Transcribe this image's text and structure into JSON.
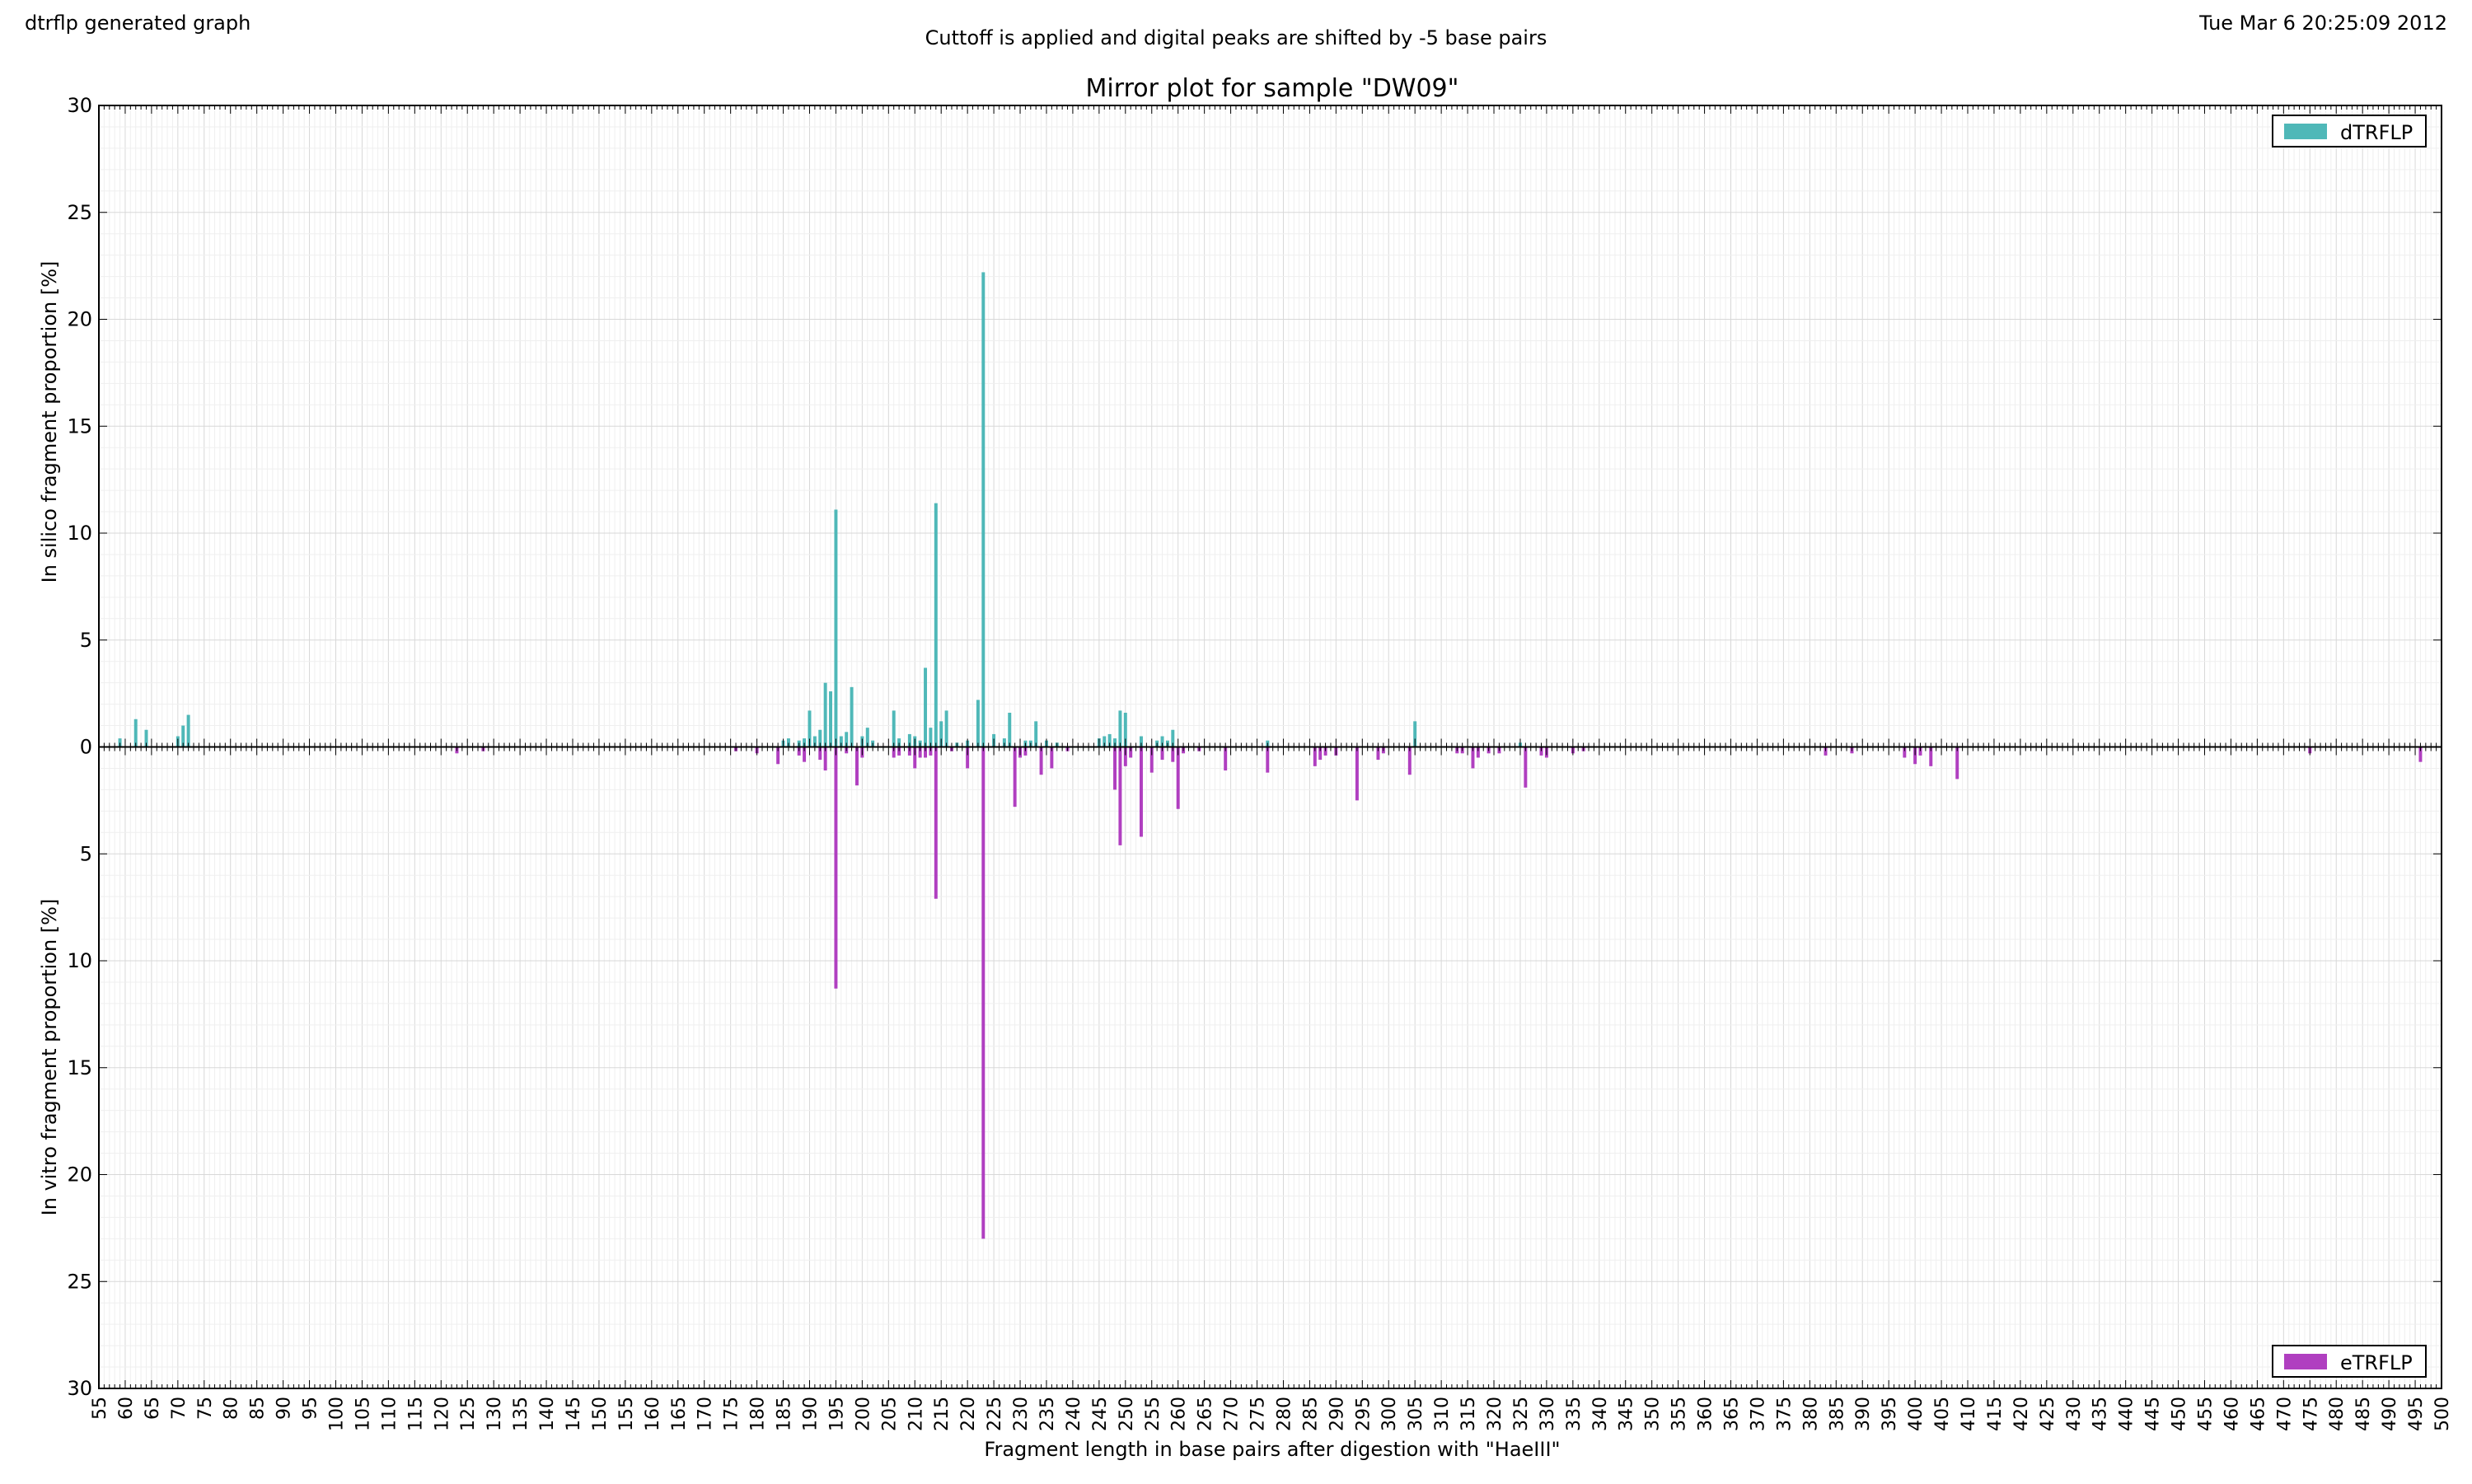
{
  "header": {
    "left": "dtrflp generated graph",
    "center": "Cuttoff is applied and digital peaks are shifted by -5 base pairs",
    "right": "Tue Mar  6 20:25:09 2012"
  },
  "chart_data": {
    "type": "bar",
    "title": "Mirror plot for sample \"DW09\"",
    "xlabel": "Fragment length in base pairs after digestion with \"HaeIII\"",
    "ylabel_top": "In silico fragment proportion [%]",
    "ylabel_bottom": "In vitro fragment proportion [%]",
    "xlim": [
      55,
      500
    ],
    "ylim": [
      -30,
      30
    ],
    "y_ticks": [
      30,
      25,
      20,
      15,
      10,
      5,
      0,
      5,
      10,
      15,
      20,
      25,
      30
    ],
    "x_tick_step": 5,
    "grid": true,
    "series": [
      {
        "name": "dTRFLP",
        "color": "#4fb8b8",
        "legend_position": "top-right",
        "points": [
          [
            59,
            0.4
          ],
          [
            62,
            1.3
          ],
          [
            64,
            0.8
          ],
          [
            70,
            0.5
          ],
          [
            71,
            1.0
          ],
          [
            72,
            1.5
          ],
          [
            185,
            0.3
          ],
          [
            186,
            0.4
          ],
          [
            188,
            0.3
          ],
          [
            189,
            0.4
          ],
          [
            190,
            1.7
          ],
          [
            191,
            0.5
          ],
          [
            192,
            0.8
          ],
          [
            193,
            3.0
          ],
          [
            194,
            2.6
          ],
          [
            195,
            11.1
          ],
          [
            196,
            0.5
          ],
          [
            197,
            0.7
          ],
          [
            198,
            2.8
          ],
          [
            200,
            0.5
          ],
          [
            201,
            0.9
          ],
          [
            202,
            0.3
          ],
          [
            206,
            1.7
          ],
          [
            207,
            0.4
          ],
          [
            209,
            0.6
          ],
          [
            210,
            0.5
          ],
          [
            211,
            0.3
          ],
          [
            212,
            3.7
          ],
          [
            213,
            0.9
          ],
          [
            214,
            11.4
          ],
          [
            215,
            1.2
          ],
          [
            216,
            1.7
          ],
          [
            218,
            0.2
          ],
          [
            220,
            0.3
          ],
          [
            222,
            2.2
          ],
          [
            223,
            22.2
          ],
          [
            225,
            0.6
          ],
          [
            227,
            0.4
          ],
          [
            228,
            1.6
          ],
          [
            231,
            0.3
          ],
          [
            232,
            0.3
          ],
          [
            233,
            1.2
          ],
          [
            235,
            0.3
          ],
          [
            237,
            0.2
          ],
          [
            245,
            0.4
          ],
          [
            246,
            0.5
          ],
          [
            247,
            0.6
          ],
          [
            248,
            0.4
          ],
          [
            249,
            1.7
          ],
          [
            250,
            1.6
          ],
          [
            253,
            0.5
          ],
          [
            256,
            0.3
          ],
          [
            257,
            0.5
          ],
          [
            258,
            0.3
          ],
          [
            259,
            0.8
          ],
          [
            277,
            0.3
          ],
          [
            305,
            1.2
          ],
          [
            325,
            0.2
          ]
        ]
      },
      {
        "name": "eTRFLP",
        "color": "#b03fc0",
        "legend_position": "bottom-right",
        "points": [
          [
            123,
            0.3
          ],
          [
            128,
            0.2
          ],
          [
            176,
            0.2
          ],
          [
            180,
            0.3
          ],
          [
            184,
            0.8
          ],
          [
            188,
            0.4
          ],
          [
            189,
            0.7
          ],
          [
            192,
            0.6
          ],
          [
            193,
            1.1
          ],
          [
            195,
            11.3
          ],
          [
            197,
            0.3
          ],
          [
            199,
            1.8
          ],
          [
            200,
            0.5
          ],
          [
            206,
            0.5
          ],
          [
            207,
            0.4
          ],
          [
            209,
            0.4
          ],
          [
            210,
            1.0
          ],
          [
            211,
            0.5
          ],
          [
            212,
            0.5
          ],
          [
            213,
            0.4
          ],
          [
            214,
            7.1
          ],
          [
            217,
            0.2
          ],
          [
            220,
            1.0
          ],
          [
            223,
            23.0
          ],
          [
            229,
            2.8
          ],
          [
            230,
            0.5
          ],
          [
            231,
            0.4
          ],
          [
            234,
            1.3
          ],
          [
            236,
            1.0
          ],
          [
            239,
            0.2
          ],
          [
            248,
            2.0
          ],
          [
            249,
            4.6
          ],
          [
            250,
            0.9
          ],
          [
            251,
            0.5
          ],
          [
            253,
            4.2
          ],
          [
            255,
            1.2
          ],
          [
            257,
            0.6
          ],
          [
            259,
            0.7
          ],
          [
            260,
            2.9
          ],
          [
            261,
            0.3
          ],
          [
            264,
            0.2
          ],
          [
            269,
            1.1
          ],
          [
            277,
            1.2
          ],
          [
            286,
            0.9
          ],
          [
            287,
            0.6
          ],
          [
            288,
            0.4
          ],
          [
            290,
            0.4
          ],
          [
            294,
            2.5
          ],
          [
            298,
            0.6
          ],
          [
            299,
            0.3
          ],
          [
            304,
            1.3
          ],
          [
            313,
            0.3
          ],
          [
            314,
            0.3
          ],
          [
            316,
            1.0
          ],
          [
            317,
            0.5
          ],
          [
            319,
            0.3
          ],
          [
            321,
            0.3
          ],
          [
            326,
            1.9
          ],
          [
            329,
            0.4
          ],
          [
            330,
            0.5
          ],
          [
            335,
            0.3
          ],
          [
            337,
            0.2
          ],
          [
            383,
            0.4
          ],
          [
            388,
            0.3
          ],
          [
            398,
            0.5
          ],
          [
            400,
            0.8
          ],
          [
            401,
            0.4
          ],
          [
            403,
            0.9
          ],
          [
            408,
            1.5
          ],
          [
            475,
            0.3
          ],
          [
            496,
            0.7
          ]
        ]
      }
    ]
  }
}
